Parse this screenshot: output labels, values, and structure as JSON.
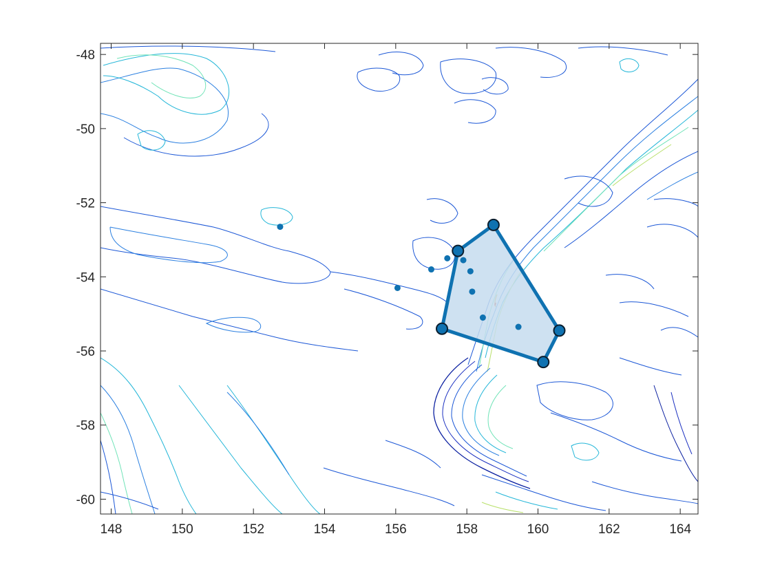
{
  "chart_data": {
    "type": "scatter",
    "title": "",
    "xlabel": "",
    "ylabel": "",
    "xlim": [
      147.7,
      164.5
    ],
    "ylim": [
      -60.4,
      -47.7
    ],
    "x_ticks": [
      148,
      150,
      152,
      154,
      156,
      158,
      160,
      162,
      164
    ],
    "y_ticks": [
      -48,
      -50,
      -52,
      -54,
      -56,
      -58,
      -60
    ],
    "x_tick_labels": [
      "148",
      "150",
      "152",
      "154",
      "156",
      "158",
      "160",
      "162",
      "164"
    ],
    "y_tick_labels": [
      "-48",
      "-50",
      "-52",
      "-54",
      "-56",
      "-58",
      "-60"
    ],
    "grid": false,
    "legend": "none",
    "background": "bathymetry contour map",
    "polygon": {
      "vertices": [
        {
          "x": 158.75,
          "y": -52.6
        },
        {
          "x": 157.75,
          "y": -53.3
        },
        {
          "x": 157.3,
          "y": -55.4
        },
        {
          "x": 160.15,
          "y": -56.3
        },
        {
          "x": 160.6,
          "y": -55.45
        }
      ],
      "fill": "#c6dcef",
      "stroke": "#0f72b1"
    },
    "points": [
      {
        "x": 152.75,
        "y": -52.65
      },
      {
        "x": 156.05,
        "y": -54.3
      },
      {
        "x": 157.0,
        "y": -53.8
      },
      {
        "x": 157.45,
        "y": -53.5
      },
      {
        "x": 157.9,
        "y": -53.55
      },
      {
        "x": 158.1,
        "y": -53.85
      },
      {
        "x": 158.15,
        "y": -54.4
      },
      {
        "x": 158.45,
        "y": -55.1
      },
      {
        "x": 159.45,
        "y": -55.35
      }
    ],
    "point_color": "#0f72b1"
  }
}
